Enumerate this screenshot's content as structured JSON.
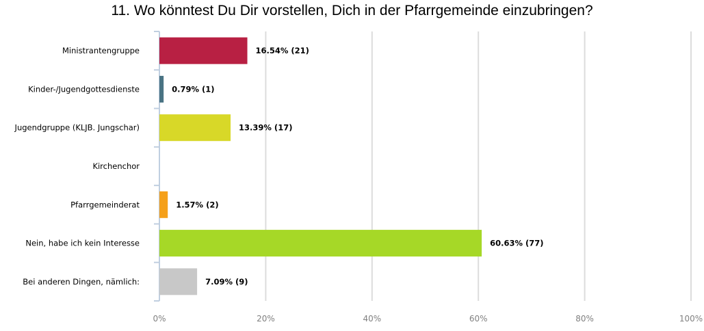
{
  "chart_data": {
    "type": "bar",
    "orientation": "horizontal",
    "title": "11. Wo könntest Du Dir vorstellen, Dich in der Pfarrgemeinde einzubringen?",
    "categories": [
      "Ministrantengruppe",
      "Kinder-/Jugendgottesdienste",
      "Jugendgruppe (KLJB. Jungschar)",
      "Kirchenchor",
      "Pfarrgemeinderat",
      "Nein, habe ich kein Interesse",
      "Bei anderen Dingen, nämlich:"
    ],
    "values": [
      16.54,
      0.79,
      13.39,
      0,
      1.57,
      60.63,
      7.09
    ],
    "counts": [
      21,
      1,
      17,
      0,
      2,
      77,
      9
    ],
    "data_labels": [
      "16.54% (21)",
      "0.79% (1)",
      "13.39% (17)",
      "",
      "1.57% (2)",
      "60.63% (77)",
      "7.09% (9)"
    ],
    "colors": [
      "#b82043",
      "#4a7383",
      "#d8d828",
      "#cccccc",
      "#f5a01a",
      "#a6d827",
      "#c8c8c8"
    ],
    "x_ticks": [
      0,
      20,
      40,
      60,
      80,
      100
    ],
    "x_tick_labels": [
      "0%",
      "20%",
      "40%",
      "60%",
      "80%",
      "100%"
    ],
    "xlim": [
      0,
      100
    ],
    "grid": true,
    "xlabel": "",
    "ylabel": ""
  }
}
